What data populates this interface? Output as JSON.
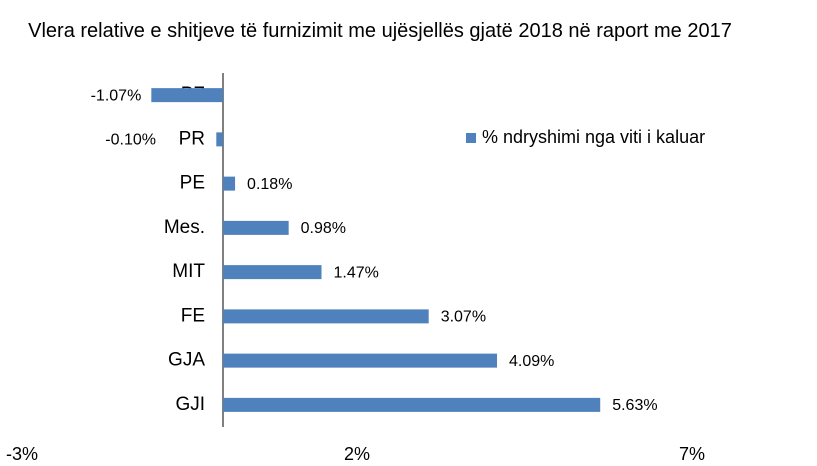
{
  "chart_data": {
    "type": "hbar",
    "title": "Vlera relative e shitjeve të furnizimit me ujësjellës gjatë 2018 në raport me 2017",
    "categories": [
      "PZ",
      "PR",
      "PE",
      "Mes.",
      "MIT",
      "FE",
      "GJA",
      "GJI"
    ],
    "series": [
      {
        "name": "% ndryshimi nga viti i kaluar",
        "color": "#4f81bd",
        "values": [
          -1.07,
          -0.1,
          0.18,
          0.98,
          1.47,
          3.07,
          4.09,
          5.63
        ],
        "value_labels": [
          "-1.07%",
          "-0.10%",
          "0.18%",
          "0.98%",
          "1.47%",
          "3.07%",
          "4.09%",
          "5.63%"
        ]
      }
    ],
    "xlim": [
      -3,
      8.8
    ],
    "xticks": [
      {
        "value": -3,
        "label": "-3%"
      },
      {
        "value": 2,
        "label": "2%"
      },
      {
        "value": 7,
        "label": "7%"
      }
    ],
    "grid": false,
    "legend": "upper right"
  }
}
